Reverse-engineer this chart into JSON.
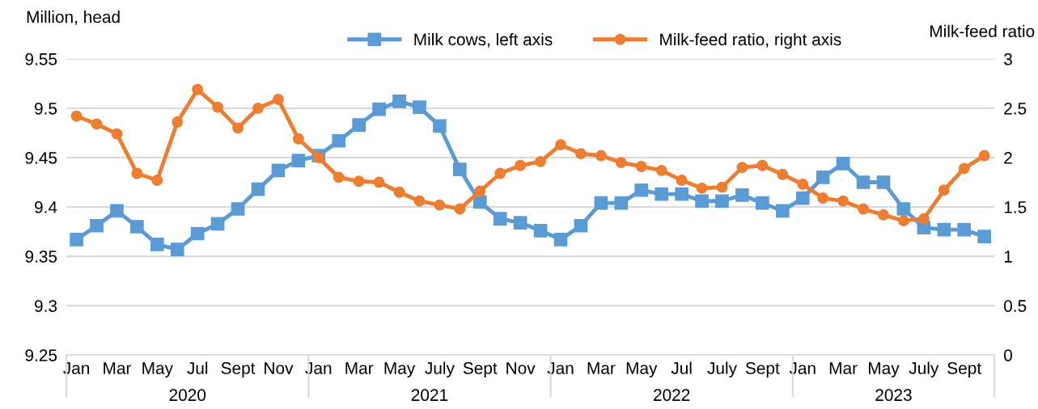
{
  "chart_data": {
    "type": "line",
    "ylabel": "Million, head",
    "y2label": "Milk-feed ratio",
    "categories": [
      "Jan",
      null,
      "Mar",
      null,
      "May",
      null,
      "Jul",
      null,
      "Sept",
      null,
      "Nov",
      null,
      "Jan",
      null,
      "Mar",
      null,
      "May",
      null,
      "July",
      null,
      "Sept",
      null,
      "Nov",
      null,
      "Jan",
      null,
      "Mar",
      null,
      "May",
      null,
      "Jul",
      null,
      "July",
      null,
      "Sept",
      null,
      "Jan",
      null,
      "Mar",
      null,
      "May",
      null,
      "July",
      null,
      "Sept",
      null
    ],
    "annotations": [
      "2020",
      "2021",
      "2022",
      "2023"
    ],
    "series": [
      {
        "name": "Milk cows, left axis",
        "color": "#5b9bd5",
        "marker": "square",
        "values": [
          9.367,
          9.381,
          9.396,
          9.38,
          9.362,
          9.357,
          9.373,
          9.383,
          9.398,
          9.418,
          9.437,
          9.447,
          9.452,
          9.467,
          9.483,
          9.499,
          9.507,
          9.501,
          9.482,
          9.438,
          9.405,
          9.388,
          9.384,
          9.376,
          9.367,
          9.381,
          9.404,
          9.404,
          9.417,
          9.413,
          9.413,
          9.406,
          9.406,
          9.412,
          9.404,
          9.396,
          9.409,
          9.43,
          9.444,
          9.425,
          9.425,
          9.398,
          9.379,
          9.377,
          9.377,
          9.37
        ]
      },
      {
        "name": "Milk-feed ratio, right axis",
        "color": "#ed7d31",
        "marker": "circle",
        "axis": "y2",
        "values": [
          2.42,
          2.34,
          2.24,
          1.84,
          1.77,
          2.36,
          2.69,
          2.51,
          2.3,
          2.5,
          2.59,
          2.19,
          2.0,
          1.8,
          1.76,
          1.75,
          1.65,
          1.56,
          1.52,
          1.48,
          1.66,
          1.84,
          1.92,
          1.96,
          2.13,
          2.04,
          2.02,
          1.95,
          1.91,
          1.87,
          1.77,
          1.69,
          1.7,
          1.9,
          1.92,
          1.83,
          1.73,
          1.59,
          1.56,
          1.48,
          1.42,
          1.36,
          1.38,
          1.67,
          1.89,
          2.02
        ]
      }
    ],
    "ylim": [
      9.25,
      9.55
    ],
    "yticks": [
      9.25,
      9.3,
      9.35,
      9.4,
      9.45,
      9.5,
      9.55
    ],
    "y2lim": [
      0,
      3
    ],
    "y2ticks": [
      0,
      0.5,
      1,
      1.5,
      2,
      2.5,
      3
    ],
    "grid": "y",
    "legend": "top",
    "line_style": "solid"
  }
}
